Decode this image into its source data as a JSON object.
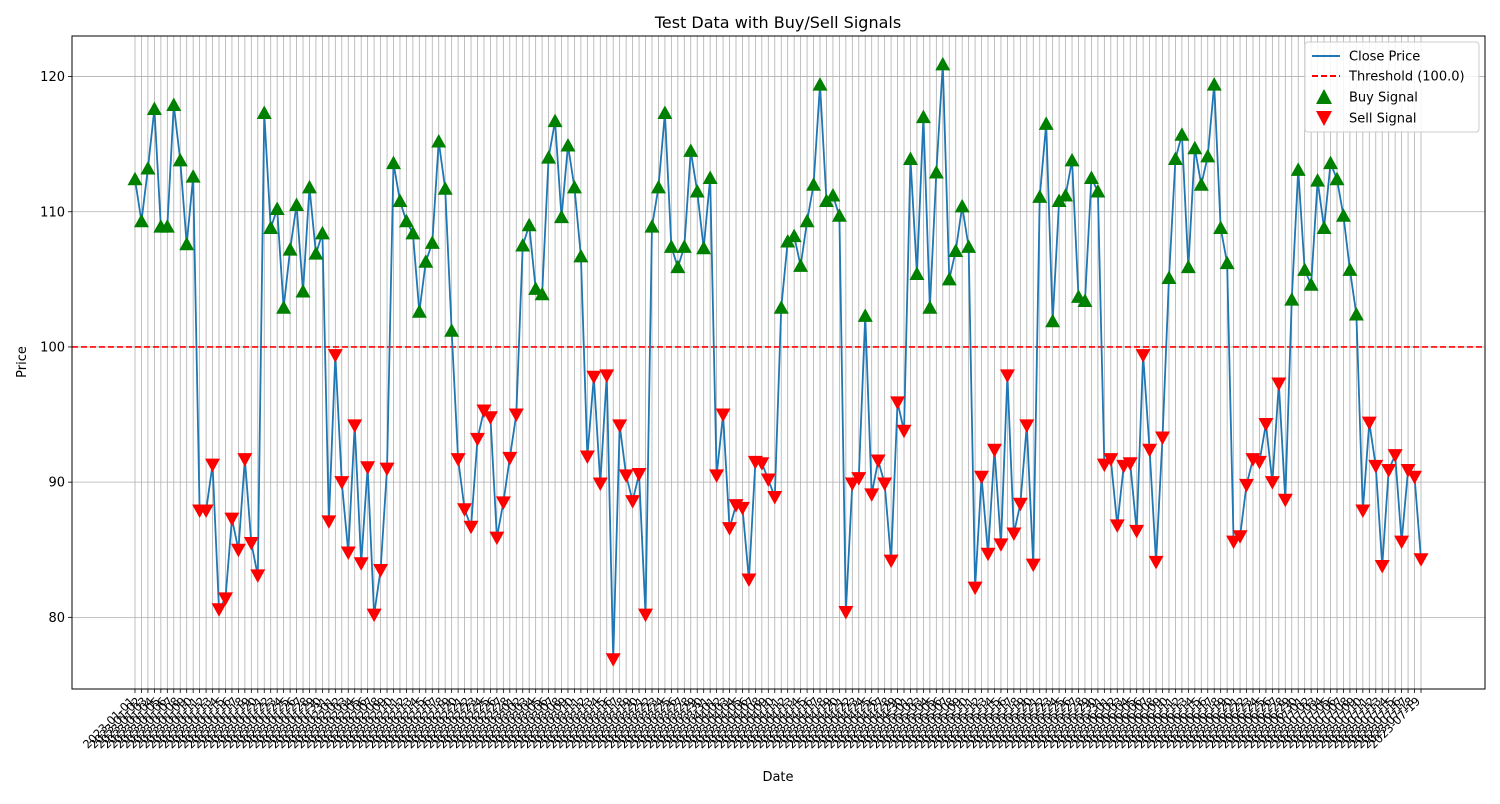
{
  "chart_data": {
    "type": "line",
    "title": "Test Data with Buy/Sell Signals",
    "xlabel": "Date",
    "ylabel": "Price",
    "ylim": [
      74.7,
      123.0
    ],
    "yticks": [
      80,
      90,
      100,
      110,
      120
    ],
    "grid": true,
    "legend_position": "top-right",
    "threshold": 100.0,
    "date_start": "2023-01-01",
    "date_end": "2023-07-19",
    "categories": [
      "2023-01-01",
      "2023-01-02",
      "2023-01-03",
      "2023-01-04",
      "2023-01-05",
      "2023-01-06",
      "2023-01-07",
      "2023-01-08",
      "2023-01-09",
      "2023-01-10",
      "2023-01-11",
      "2023-01-12",
      "2023-01-13",
      "2023-01-14",
      "2023-01-15",
      "2023-01-16",
      "2023-01-17",
      "2023-01-18",
      "2023-01-19",
      "2023-01-20",
      "2023-01-21",
      "2023-01-22",
      "2023-01-23",
      "2023-01-24",
      "2023-01-25",
      "2023-01-26",
      "2023-01-27",
      "2023-01-28",
      "2023-01-29",
      "2023-01-30",
      "2023-01-31",
      "2023-02-01",
      "2023-02-02",
      "2023-02-03",
      "2023-02-04",
      "2023-02-05",
      "2023-02-06",
      "2023-02-07",
      "2023-02-08",
      "2023-02-09",
      "2023-02-10",
      "2023-02-11",
      "2023-02-12",
      "2023-02-13",
      "2023-02-14",
      "2023-02-15",
      "2023-02-16",
      "2023-02-17",
      "2023-02-18",
      "2023-02-19",
      "2023-02-20",
      "2023-02-21",
      "2023-02-22",
      "2023-02-23",
      "2023-02-24",
      "2023-02-25",
      "2023-02-26",
      "2023-02-27",
      "2023-02-28",
      "2023-03-01",
      "2023-03-02",
      "2023-03-03",
      "2023-03-04",
      "2023-03-05",
      "2023-03-06",
      "2023-03-07",
      "2023-03-08",
      "2023-03-09",
      "2023-03-10",
      "2023-03-11",
      "2023-03-12",
      "2023-03-13",
      "2023-03-14",
      "2023-03-15",
      "2023-03-16",
      "2023-03-17",
      "2023-03-18",
      "2023-03-19",
      "2023-03-20",
      "2023-03-21",
      "2023-03-22",
      "2023-03-23",
      "2023-03-24",
      "2023-03-25",
      "2023-03-26",
      "2023-03-27",
      "2023-03-28",
      "2023-03-29",
      "2023-03-30",
      "2023-03-31",
      "2023-04-01",
      "2023-04-02",
      "2023-04-03",
      "2023-04-04",
      "2023-04-05",
      "2023-04-06",
      "2023-04-07",
      "2023-04-08",
      "2023-04-09",
      "2023-04-10",
      "2023-04-11",
      "2023-04-12",
      "2023-04-13",
      "2023-04-14",
      "2023-04-15",
      "2023-04-16",
      "2023-04-17",
      "2023-04-18",
      "2023-04-19",
      "2023-04-20",
      "2023-04-21",
      "2023-04-22",
      "2023-04-23",
      "2023-04-24",
      "2023-04-25",
      "2023-04-26",
      "2023-04-27",
      "2023-04-28",
      "2023-04-29",
      "2023-04-30",
      "2023-05-01",
      "2023-05-02",
      "2023-05-03",
      "2023-05-04",
      "2023-05-05",
      "2023-05-06",
      "2023-05-07",
      "2023-05-08",
      "2023-05-09",
      "2023-05-10",
      "2023-05-11",
      "2023-05-12",
      "2023-05-13",
      "2023-05-14",
      "2023-05-15",
      "2023-05-16",
      "2023-05-17",
      "2023-05-18",
      "2023-05-19",
      "2023-05-20",
      "2023-05-21",
      "2023-05-22",
      "2023-05-23",
      "2023-05-24",
      "2023-05-25",
      "2023-05-26",
      "2023-05-27",
      "2023-05-28",
      "2023-05-29",
      "2023-05-30",
      "2023-05-31",
      "2023-06-01",
      "2023-06-02",
      "2023-06-03",
      "2023-06-04",
      "2023-06-05",
      "2023-06-06",
      "2023-06-07",
      "2023-06-08",
      "2023-06-09",
      "2023-06-10",
      "2023-06-11",
      "2023-06-12",
      "2023-06-13",
      "2023-06-14",
      "2023-06-15",
      "2023-06-16",
      "2023-06-17",
      "2023-06-18",
      "2023-06-19",
      "2023-06-20",
      "2023-06-21",
      "2023-06-22",
      "2023-06-23",
      "2023-06-24",
      "2023-06-25",
      "2023-06-26",
      "2023-06-27",
      "2023-06-28",
      "2023-06-29",
      "2023-06-30",
      "2023-07-01",
      "2023-07-02",
      "2023-07-03",
      "2023-07-04",
      "2023-07-05",
      "2023-07-06",
      "2023-07-07",
      "2023-07-08",
      "2023-07-09",
      "2023-07-10",
      "2023-07-11",
      "2023-07-12",
      "2023-07-13",
      "2023-07-14",
      "2023-07-15",
      "2023-07-16",
      "2023-07-17",
      "2023-07-18",
      "2023-07-19"
    ],
    "series": [
      {
        "name": "Close Price",
        "color": "#1f77b4",
        "values": [
          112.4,
          109.3,
          113.2,
          117.6,
          108.9,
          108.9,
          117.9,
          113.8,
          107.6,
          112.6,
          87.9,
          87.9,
          91.3,
          80.6,
          81.4,
          87.3,
          85.0,
          91.7,
          85.5,
          83.1,
          117.3,
          108.8,
          110.2,
          102.9,
          107.2,
          110.5,
          104.1,
          111.8,
          106.9,
          108.4,
          87.1,
          99.4,
          90.0,
          84.8,
          94.2,
          84.0,
          91.1,
          80.2,
          83.5,
          91.0,
          113.6,
          110.8,
          109.3,
          108.4,
          102.6,
          106.3,
          107.7,
          115.2,
          111.7,
          101.2,
          91.7,
          88.0,
          86.7,
          93.2,
          95.3,
          94.8,
          85.9,
          88.5,
          91.8,
          95.0,
          107.5,
          109.0,
          104.3,
          103.9,
          114.0,
          116.7,
          109.6,
          114.9,
          111.8,
          106.7,
          91.9,
          97.8,
          89.9,
          97.9,
          76.9,
          94.2,
          90.5,
          88.6,
          90.6,
          80.2,
          108.9,
          111.8,
          117.3,
          107.4,
          105.9,
          107.4,
          114.5,
          111.5,
          107.3,
          112.5,
          90.5,
          95.0,
          86.6,
          88.3,
          88.1,
          82.8,
          91.5,
          91.4,
          90.2,
          88.9,
          102.9,
          107.8,
          108.2,
          106.0,
          109.3,
          112.0,
          119.4,
          110.8,
          111.2,
          109.7,
          80.4,
          89.9,
          90.3,
          102.3,
          89.1,
          91.6,
          89.9,
          84.2,
          95.9,
          93.8,
          113.9,
          105.4,
          117.0,
          102.9,
          112.9,
          120.9,
          105.0,
          107.1,
          110.4,
          107.4,
          82.2,
          90.4,
          84.7,
          92.4,
          85.4,
          97.9,
          86.2,
          88.4,
          94.2,
          83.9,
          111.1,
          116.5,
          101.9,
          110.8,
          111.2,
          113.8,
          103.7,
          103.4,
          112.5,
          111.5,
          91.3,
          91.7,
          86.8,
          91.2,
          91.4,
          86.4,
          99.4,
          92.4,
          84.1,
          93.3,
          105.1,
          113.9,
          115.7,
          105.9,
          114.7,
          112.0,
          114.1,
          119.4,
          108.8,
          106.2,
          85.6,
          86.0,
          89.8,
          91.7,
          91.5,
          94.3,
          90.0,
          97.3,
          88.7,
          103.5,
          113.1,
          105.7,
          104.6,
          112.3,
          108.8,
          113.6,
          112.4,
          109.7,
          105.7,
          102.4,
          87.9,
          94.4,
          91.2,
          83.8,
          90.9,
          92.0,
          85.6,
          90.9,
          90.4,
          84.3
        ]
      }
    ],
    "threshold_series": {
      "name": "Threshold (100.0)",
      "color": "#ff0000",
      "style": "dashed"
    },
    "signals": {
      "buy": {
        "name": "Buy Signal",
        "color": "#008000",
        "marker": "triangle-up"
      },
      "sell": {
        "name": "Sell Signal",
        "color": "#ff0000",
        "marker": "triangle-down"
      }
    }
  }
}
